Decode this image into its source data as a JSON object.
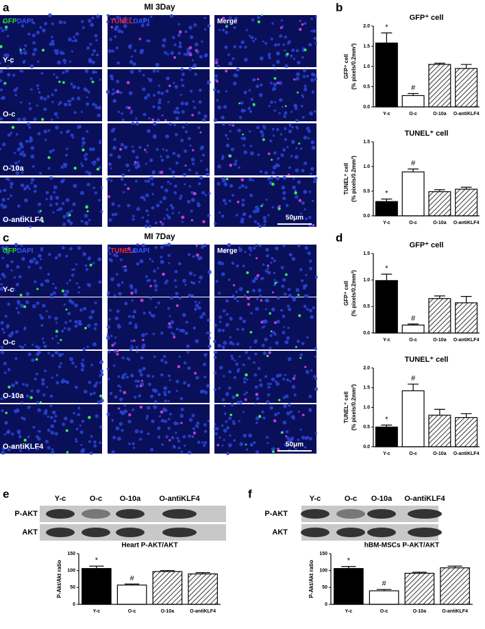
{
  "panel_labels": [
    "a",
    "b",
    "c",
    "d",
    "e",
    "f"
  ],
  "micrographs": [
    {
      "title": "MI 3Day",
      "columns": [
        [
          "GFP",
          "DAPI"
        ],
        [
          "TUNEL",
          "DAPI"
        ],
        [
          "Merge"
        ]
      ],
      "rows": [
        "Y-c",
        "O-c",
        "O-10a",
        "O-antiKLF4"
      ],
      "scale_bar": "50μm"
    },
    {
      "title": "MI 7Day",
      "columns": [
        [
          "GFP",
          "DAPI"
        ],
        [
          "TUNEL",
          "DAPI"
        ],
        [
          "Merge"
        ]
      ],
      "rows": [
        "Y-c",
        "O-c",
        "O-10a",
        "O-antiKLF4"
      ],
      "scale_bar": "50μm"
    }
  ],
  "blots": [
    {
      "lanes": [
        "Y-c",
        "O-c",
        "O-10a",
        "O-antiKLF4"
      ],
      "rows": [
        "P-AKT",
        "AKT"
      ]
    },
    {
      "lanes": [
        "Y-c",
        "O-c",
        "O-10a",
        "O-antiKLF4"
      ],
      "rows": [
        "P-AKT",
        "AKT"
      ]
    }
  ],
  "chart_data": [
    {
      "type": "bar",
      "title": "GFP⁺ cell",
      "ylabel": [
        "GFP⁺ cell",
        "(% pixels/0.2mm²)"
      ],
      "categories": [
        "Y-c",
        "O-c",
        "O-10a",
        "O-antiKLF4"
      ],
      "values": [
        1.58,
        0.28,
        1.05,
        0.95
      ],
      "errors": [
        0.25,
        0.05,
        0.03,
        0.1
      ],
      "fills": [
        "#000000",
        "#ffffff",
        "hatch",
        "hatch"
      ],
      "ylim": [
        0,
        2
      ],
      "yticks": [
        {
          "value": 0,
          "label": "0.0"
        },
        {
          "value": 0.5,
          "label": "0.5"
        },
        {
          "value": 1,
          "label": "1.0"
        },
        {
          "value": 1.5,
          "label": "1.5"
        },
        {
          "value": 2,
          "label": "2.0"
        }
      ],
      "annotations": [
        {
          "category": "Y-c",
          "text": "*"
        },
        {
          "category": "O-c",
          "text": "#"
        }
      ]
    },
    {
      "type": "bar",
      "title": "TUNEL⁺ cell",
      "ylabel": [
        "TUNEL⁺ cell",
        "(% pixels/0.2mm²)"
      ],
      "categories": [
        "Y-c",
        "O-c",
        "O-10a",
        "O-antiKLF4"
      ],
      "values": [
        0.29,
        0.89,
        0.49,
        0.54
      ],
      "errors": [
        0.05,
        0.06,
        0.04,
        0.04
      ],
      "fills": [
        "#000000",
        "#ffffff",
        "hatch",
        "hatch"
      ],
      "ylim": [
        0,
        1.5
      ],
      "yticks": [
        {
          "value": 0,
          "label": "0.0"
        },
        {
          "value": 0.5,
          "label": "0.5"
        },
        {
          "value": 1,
          "label": "1.0"
        },
        {
          "value": 1.5,
          "label": "1.5"
        }
      ],
      "annotations": [
        {
          "category": "Y-c",
          "text": "*"
        },
        {
          "category": "O-c",
          "text": "#"
        }
      ]
    },
    {
      "type": "bar",
      "title": "GFP⁺ cell",
      "ylabel": [
        "GFP⁺ cell",
        "(% pixels/0.2mm²)"
      ],
      "categories": [
        "Y-c",
        "O-c",
        "O-10a",
        "O-antiKLF4"
      ],
      "values": [
        0.99,
        0.15,
        0.65,
        0.57
      ],
      "errors": [
        0.12,
        0.02,
        0.05,
        0.12
      ],
      "fills": [
        "#000000",
        "#ffffff",
        "hatch",
        "hatch"
      ],
      "ylim": [
        0,
        1.5
      ],
      "yticks": [
        {
          "value": 0,
          "label": "0.0"
        },
        {
          "value": 0.5,
          "label": "0.5"
        },
        {
          "value": 1,
          "label": "1.0"
        },
        {
          "value": 1.5,
          "label": "1.5"
        }
      ],
      "annotations": [
        {
          "category": "Y-c",
          "text": "*"
        },
        {
          "category": "O-c",
          "text": "#"
        }
      ]
    },
    {
      "type": "bar",
      "title": "TUNEL⁺ cell",
      "ylabel": [
        "TUNEL⁺ cell",
        "(% pixels/0.2mm²)"
      ],
      "categories": [
        "Y-c",
        "O-c",
        "O-10a",
        "O-antiKLF4"
      ],
      "values": [
        0.5,
        1.42,
        0.8,
        0.74
      ],
      "errors": [
        0.05,
        0.17,
        0.15,
        0.1
      ],
      "fills": [
        "#000000",
        "#ffffff",
        "hatch",
        "hatch"
      ],
      "ylim": [
        0,
        2
      ],
      "yticks": [
        {
          "value": 0,
          "label": "0.0"
        },
        {
          "value": 0.5,
          "label": "0.5"
        },
        {
          "value": 1,
          "label": "1.0"
        },
        {
          "value": 1.5,
          "label": "1.5"
        },
        {
          "value": 2,
          "label": "2.0"
        }
      ],
      "annotations": [
        {
          "category": "Y-c",
          "text": "*"
        },
        {
          "category": "O-c",
          "text": "#"
        }
      ]
    },
    {
      "type": "bar",
      "title": "Heart P-AKT/AKT",
      "ylabel": [
        "P-Akt/Akt ratio"
      ],
      "categories": [
        "Y-c",
        "O-c",
        "O-10a",
        "O-antiKLF4"
      ],
      "values": [
        106,
        57,
        97,
        90
      ],
      "errors": [
        7,
        3,
        3,
        4
      ],
      "fills": [
        "#000000",
        "#ffffff",
        "hatch",
        "hatch"
      ],
      "ylim": [
        0,
        150
      ],
      "yticks": [
        0,
        50,
        100,
        150
      ],
      "annotations": [
        {
          "category": "Y-c",
          "text": "*"
        },
        {
          "category": "O-c",
          "text": "#"
        }
      ]
    },
    {
      "type": "bar",
      "title": "hBM-MSCs P-AKT/AKT",
      "ylabel": [
        "P-Akt/Akt ratio"
      ],
      "categories": [
        "Y-c",
        "O-c",
        "O-10a",
        "O-antiKLF4"
      ],
      "values": [
        106,
        40,
        92,
        108
      ],
      "errors": [
        6,
        4,
        3,
        5
      ],
      "fills": [
        "#000000",
        "#ffffff",
        "hatch",
        "hatch"
      ],
      "ylim": [
        0,
        150
      ],
      "yticks": [
        0,
        50,
        100,
        150
      ],
      "annotations": [
        {
          "category": "Y-c",
          "text": "*"
        },
        {
          "category": "O-c",
          "text": "#"
        }
      ]
    }
  ]
}
